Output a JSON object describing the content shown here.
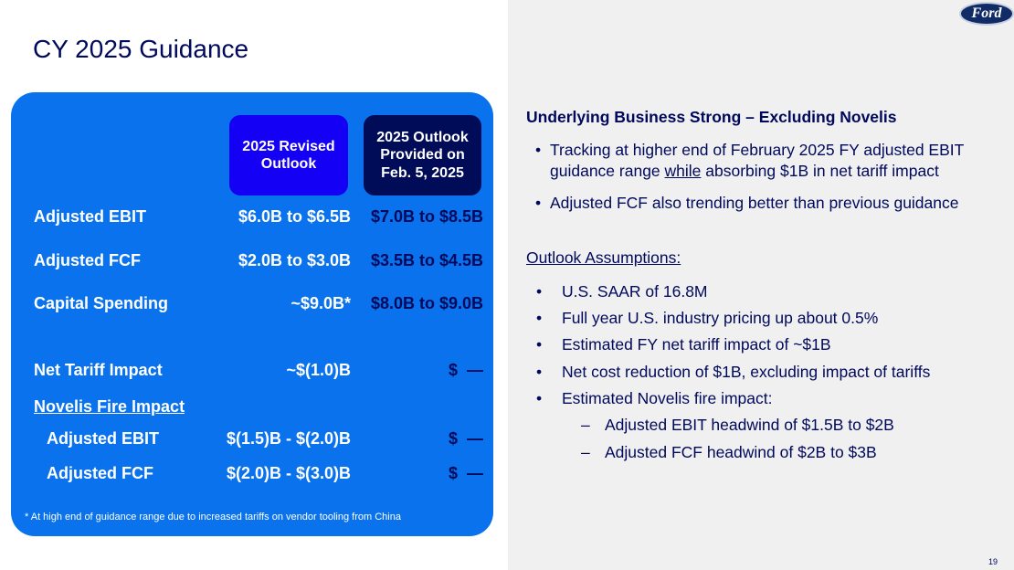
{
  "title": "CY 2025 Guidance",
  "logo": "Ford",
  "table": {
    "col1": "2025 Revised Outlook",
    "col2": "2025 Outlook Provided on Feb. 5, 2025",
    "rows": [
      {
        "label": "Adjusted EBIT",
        "revised": "$6.0B to $6.5B",
        "prior": "$7.0B to $8.5B"
      },
      {
        "label": "Adjusted FCF",
        "revised": "$2.0B to $3.0B",
        "prior": "$3.5B to $4.5B"
      },
      {
        "label": "Capital Spending",
        "revised": "~$9.0B*",
        "prior": "$8.0B to $9.0B"
      },
      {
        "label": "Net Tariff Impact",
        "revised": "~$(1.0)B",
        "prior": "$  —"
      },
      {
        "label": "Novelis Fire Impact"
      },
      {
        "label": "Adjusted EBIT",
        "revised": "$(1.5)B - $(2.0)B",
        "prior": "$  —"
      },
      {
        "label": "Adjusted FCF",
        "revised": "$(2.0)B - $(3.0)B",
        "prior": "$  —"
      }
    ],
    "footnote": "* At high end of guidance range due to increased tariffs on vendor tooling from China"
  },
  "right": {
    "heading": "Underlying Business Strong – Excluding Novelis",
    "b1a": "Tracking at higher end of February 2025 FY adjusted EBIT",
    "b1b": "guidance range ",
    "b1c": "while",
    "b1d": " absorbing $1B in net tariff impact",
    "b2": "Adjusted FCF also trending better than previous guidance",
    "assumptions_title": "Outlook Assumptions:",
    "assumptions": [
      "U.S. SAAR of 16.8M",
      "Full year U.S. industry pricing up about 0.5%",
      "Estimated FY net tariff impact of ~$1B",
      "Net cost reduction of $1B, excluding impact of tariffs",
      "Estimated Novelis fire impact:"
    ],
    "sub": [
      "Adjusted EBIT headwind of $1.5B to $2B",
      "Adjusted FCF headwind of $2B to $3B"
    ]
  },
  "page": "19"
}
